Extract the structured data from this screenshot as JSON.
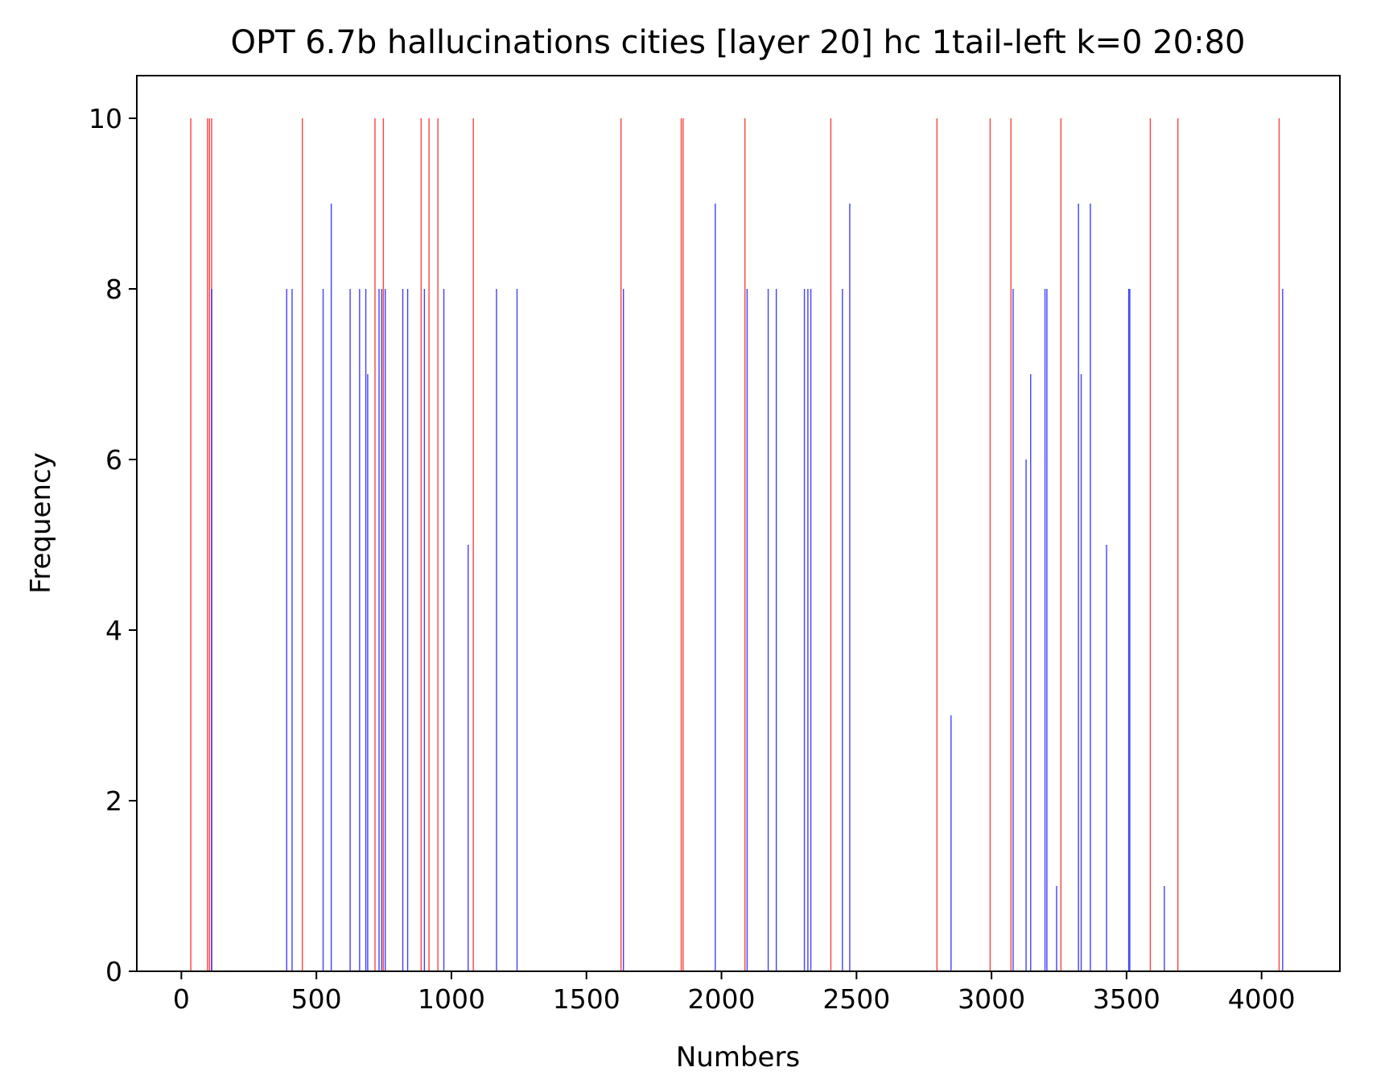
{
  "chart_data": {
    "type": "bar",
    "title": "OPT 6.7b hallucinations cities [layer 20] hc 1tail-left k=0 20:80",
    "xlabel": "Numbers",
    "ylabel": "Frequency",
    "xlim": [
      -165,
      4290
    ],
    "ylim": [
      0,
      10.5
    ],
    "xticks": [
      0,
      500,
      1000,
      1500,
      2000,
      2500,
      3000,
      3500,
      4000
    ],
    "yticks": [
      0,
      2,
      4,
      6,
      8,
      10
    ],
    "grid": false,
    "legend": "none",
    "series": [
      {
        "color": "#ff0000",
        "x": [
          35,
          97,
          104,
          112,
          448,
          717,
          748,
          888,
          917,
          950,
          1081,
          1628,
          1851,
          1858,
          2087,
          2405,
          2798,
          2995,
          3072,
          3257,
          3588,
          3690,
          4065
        ],
        "values": [
          10,
          10,
          10,
          10,
          10,
          10,
          10,
          10,
          10,
          10,
          10,
          10,
          10,
          10,
          10,
          10,
          10,
          10,
          10,
          10,
          10,
          10,
          10
        ]
      },
      {
        "color": "#0000ff",
        "x": [
          112,
          390,
          410,
          525,
          555,
          625,
          660,
          683,
          690,
          732,
          742,
          755,
          820,
          838,
          900,
          972,
          1062,
          1167,
          1243,
          1637,
          1977,
          2095,
          2173,
          2203,
          2307,
          2320,
          2331,
          2448,
          2475,
          2850,
          3080,
          3128,
          3145,
          3198,
          3205,
          3241,
          3322,
          3332,
          3366,
          3426,
          3508,
          3512,
          3640,
          4078
        ],
        "values": [
          8,
          8,
          8,
          8,
          9,
          8,
          8,
          8,
          7,
          8,
          8,
          8,
          8,
          8,
          8,
          8,
          5,
          8,
          8,
          8,
          9,
          8,
          8,
          8,
          8,
          8,
          8,
          8,
          9,
          3,
          8,
          6,
          7,
          8,
          8,
          1,
          9,
          7,
          9,
          5,
          8,
          8,
          1,
          8
        ]
      }
    ]
  }
}
